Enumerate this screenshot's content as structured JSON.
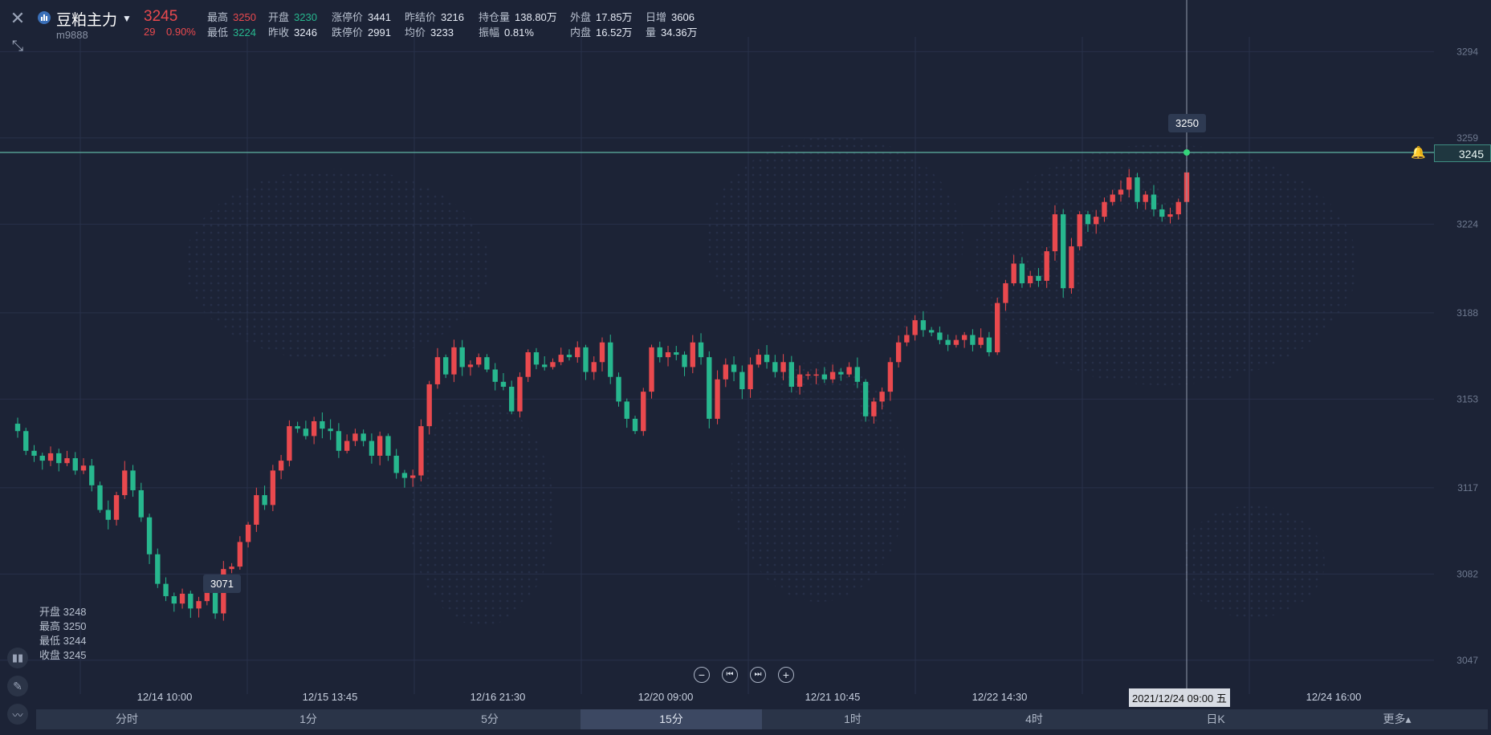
{
  "header": {
    "symbol_name": "豆粕主力",
    "symbol_code": "m9888",
    "last_price": "3245",
    "change": "29",
    "change_pct": "0.90%",
    "quotes_row1": [
      {
        "k": "最高",
        "v": "3250",
        "c": "up"
      },
      {
        "k": "开盘",
        "v": "3230",
        "c": "down"
      },
      {
        "k": "涨停价",
        "v": "3441",
        "c": ""
      },
      {
        "k": "昨结价",
        "v": "3216",
        "c": ""
      },
      {
        "k": "持仓量",
        "v": "138.80万",
        "c": ""
      },
      {
        "k": "外盘",
        "v": "17.85万",
        "c": ""
      },
      {
        "k": "日增",
        "v": "3606",
        "c": ""
      }
    ],
    "quotes_row2": [
      {
        "k": "最低",
        "v": "3224",
        "c": "down"
      },
      {
        "k": "昨收",
        "v": "3246",
        "c": ""
      },
      {
        "k": "跌停价",
        "v": "2991",
        "c": ""
      },
      {
        "k": "均价",
        "v": "3233",
        "c": ""
      },
      {
        "k": "振幅",
        "v": "0.81%",
        "c": ""
      },
      {
        "k": "内盘",
        "v": "16.52万",
        "c": ""
      },
      {
        "k": "量",
        "v": "34.36万",
        "c": ""
      }
    ]
  },
  "toolbar": {
    "close_icon": "close-icon",
    "collapse_icon": "collapse-icon",
    "indicator_icon": "candlestick-indicator-icon",
    "draw_icon": "pencil-icon",
    "compare_icon": "line-chart-icon"
  },
  "ohlc_panel": {
    "open": "开盘 3248",
    "high": "最高 3250",
    "low": "最低 3244",
    "close": "收盘 3245"
  },
  "markers": {
    "max_label": "3250",
    "min_label": "3071",
    "current_price": "3245",
    "crosshair_time": "2021/12/24 09:00 五"
  },
  "timeframes": [
    {
      "label": "分时",
      "active": false
    },
    {
      "label": "1分",
      "active": false
    },
    {
      "label": "5分",
      "active": false
    },
    {
      "label": "15分",
      "active": true
    },
    {
      "label": "1时",
      "active": false
    },
    {
      "label": "4时",
      "active": false
    },
    {
      "label": "日K",
      "active": false
    },
    {
      "label": "更多▴",
      "active": false
    }
  ],
  "colors": {
    "up": "#e9494e",
    "down": "#27b78e",
    "grid": "#28314a",
    "price_line": "#5fb4a4",
    "background": "#1c2336"
  },
  "chart_data": {
    "type": "candlestick",
    "y_ticks": [
      3294,
      3259,
      3224,
      3188,
      3153,
      3117,
      3082,
      3047
    ],
    "ylim": [
      3030,
      3300
    ],
    "x_ticks": [
      "12/14 10:00",
      "12/15 13:45",
      "12/16 21:30",
      "12/20 09:00",
      "12/21 10:45",
      "12/22 14:30",
      "12/24 16:00"
    ],
    "close_path": [
      3140,
      3132,
      3130,
      3128,
      3131,
      3127,
      3129,
      3124,
      3126,
      3118,
      3108,
      3104,
      3114,
      3124,
      3116,
      3105,
      3090,
      3078,
      3073,
      3070,
      3074,
      3068,
      3071,
      3076,
      3066,
      3084,
      3085,
      3095,
      3102,
      3114,
      3110,
      3124,
      3128,
      3142,
      3141,
      3138,
      3144,
      3141,
      3140,
      3132,
      3136,
      3139,
      3136,
      3130,
      3138,
      3130,
      3123,
      3121,
      3122,
      3142,
      3159,
      3170,
      3163,
      3174,
      3166,
      3167,
      3170,
      3165,
      3160,
      3158,
      3148,
      3162,
      3172,
      3167,
      3166,
      3168,
      3171,
      3170,
      3174,
      3164,
      3168,
      3176,
      3162,
      3152,
      3145,
      3140,
      3156,
      3174,
      3170,
      3172,
      3171,
      3166,
      3176,
      3170,
      3145,
      3161,
      3167,
      3164,
      3157,
      3167,
      3171,
      3168,
      3164,
      3168,
      3158,
      3163,
      3163,
      3163,
      3161,
      3164,
      3163,
      3166,
      3160,
      3146,
      3152,
      3156,
      3168,
      3176,
      3179,
      3185,
      3181,
      3180,
      3177,
      3175,
      3177,
      3179,
      3175,
      3178,
      3172,
      3192,
      3200,
      3208,
      3200,
      3203,
      3201,
      3213,
      3228,
      3198,
      3215,
      3228,
      3224,
      3227,
      3233,
      3236,
      3238,
      3243,
      3233,
      3236,
      3230,
      3227,
      3228,
      3233,
      3245
    ]
  }
}
